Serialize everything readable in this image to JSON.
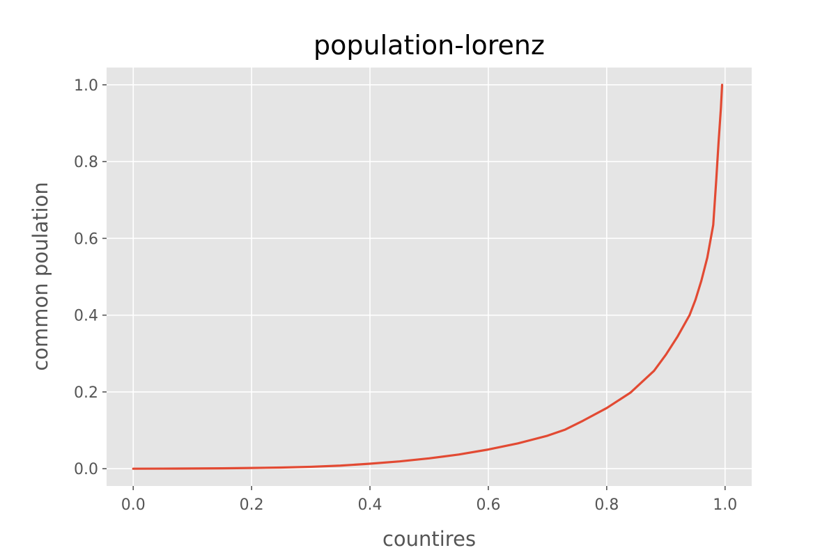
{
  "chart_data": {
    "type": "line",
    "title": "population-lorenz",
    "xlabel": "countires",
    "ylabel": "common poulation",
    "xlim": [
      -0.045,
      1.045
    ],
    "ylim": [
      -0.045,
      1.045
    ],
    "xticks": [
      0.0,
      0.2,
      0.4,
      0.6,
      0.8,
      1.0
    ],
    "yticks": [
      0.0,
      0.2,
      0.4,
      0.6,
      0.8,
      1.0
    ],
    "xtick_labels": [
      "0.0",
      "0.2",
      "0.4",
      "0.6",
      "0.8",
      "1.0"
    ],
    "ytick_labels": [
      "0.0",
      "0.2",
      "0.4",
      "0.6",
      "0.8",
      "1.0"
    ],
    "grid": true,
    "background_color": "#e5e5e5",
    "series": [
      {
        "color": "#e24a33",
        "x": [
          0.0,
          0.05,
          0.1,
          0.15,
          0.2,
          0.25,
          0.3,
          0.35,
          0.4,
          0.45,
          0.5,
          0.55,
          0.6,
          0.65,
          0.7,
          0.73,
          0.76,
          0.8,
          0.84,
          0.88,
          0.9,
          0.92,
          0.94,
          0.95,
          0.96,
          0.97,
          0.98,
          0.985,
          0.989,
          0.993,
          0.995
        ],
        "y": [
          0.0,
          0.0002,
          0.0005,
          0.001,
          0.002,
          0.003,
          0.005,
          0.008,
          0.013,
          0.019,
          0.027,
          0.037,
          0.05,
          0.066,
          0.086,
          0.102,
          0.125,
          0.158,
          0.198,
          0.255,
          0.297,
          0.345,
          0.4,
          0.44,
          0.49,
          0.55,
          0.635,
          0.75,
          0.85,
          0.94,
          1.0
        ]
      }
    ]
  }
}
